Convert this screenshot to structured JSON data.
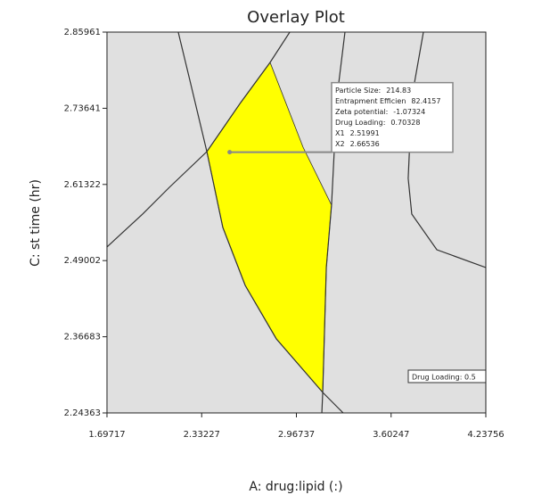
{
  "chart_data": {
    "type": "contour",
    "title": "Overlay Plot",
    "x_label": "A: drug:lipid (:)",
    "y_label": "C: st time (hr)",
    "xlim": [
      1.69717,
      4.23756
    ],
    "ylim": [
      2.24363,
      2.85961
    ],
    "xticks": [
      1.69717,
      2.33227,
      2.96737,
      3.60247,
      4.23756
    ],
    "yticks": [
      2.24363,
      2.36683,
      2.49002,
      2.61322,
      2.73641,
      2.85961
    ],
    "background": "#e0e0e0",
    "line_color": "#333333",
    "region": {
      "color": "#ffff00",
      "x": [
        2.791,
        2.594,
        2.367,
        2.474,
        2.624,
        2.833,
        3.144,
        3.168,
        3.203,
        3.012
      ],
      "y": [
        2.8106,
        2.7457,
        2.6663,
        2.5437,
        2.4499,
        2.3634,
        2.2768,
        2.4788,
        2.5798,
        2.6735
      ]
    },
    "contours": [
      {
        "x": [
          2.175,
          2.253,
          2.367,
          2.474,
          2.624,
          2.833,
          3.144,
          3.281
        ],
        "y": [
          2.8596,
          2.7817,
          2.6663,
          2.5437,
          2.4499,
          2.3634,
          2.2768,
          2.2436
        ]
      },
      {
        "x": [
          1.697,
          1.936,
          2.116,
          2.367,
          2.594,
          2.791,
          2.923
        ],
        "y": [
          2.512,
          2.5653,
          2.6086,
          2.6663,
          2.7457,
          2.8106,
          2.8596
        ]
      },
      {
        "x": [
          3.293,
          3.239,
          3.203,
          3.168,
          3.144,
          3.138
        ],
        "y": [
          2.8596,
          2.7529,
          2.5798,
          2.4788,
          2.2768,
          2.2436
        ]
      },
      {
        "x": [
          3.819,
          3.741,
          3.717,
          3.741,
          3.909,
          4.237
        ],
        "y": [
          2.8596,
          2.7529,
          2.623,
          2.5653,
          2.5076,
          2.4788
        ]
      }
    ],
    "flag": {
      "rows": [
        {
          "label": "Particle Size:",
          "value": 214.83
        },
        {
          "label": "Entrapment Efficien",
          "value": 82.4157
        },
        {
          "label": "Zeta potential:",
          "value": -1.07324
        },
        {
          "label": "Drug Loading:",
          "value": 0.70328
        },
        {
          "label": "X1",
          "value": 2.51991
        },
        {
          "label": "X2",
          "value": 2.66536
        }
      ]
    },
    "contour_label": "Drug Loading: 0.5"
  }
}
